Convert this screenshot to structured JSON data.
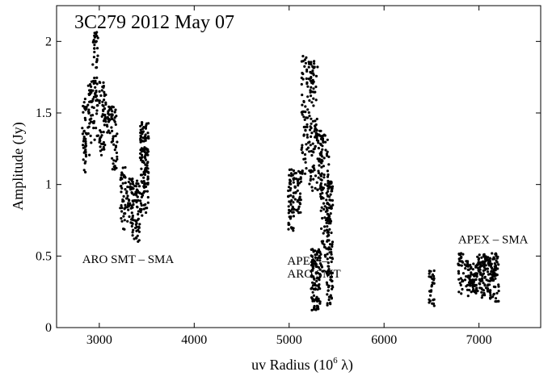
{
  "chart_data": {
    "type": "scatter",
    "title": "3C279  2012 May 07",
    "xlabel": "uv Radius (10",
    "xlabel_exponent": "6",
    "xlabel_unit": " λ)",
    "ylabel": "Amplitude (Jy)",
    "xlim": [
      2550,
      7650
    ],
    "ylim": [
      0,
      2.25
    ],
    "xticks": [
      3000,
      4000,
      5000,
      6000,
      7000
    ],
    "yticks": [
      0,
      0.5,
      1,
      1.5,
      2
    ],
    "ytick_labels": [
      "0",
      "0.5",
      "1",
      "1.5",
      "2"
    ],
    "grid": false,
    "marker_color": "#000000",
    "annotations": [
      {
        "text": "ARO SMT – SMA",
        "x": 2820,
        "y": 0.45
      },
      {
        "text": "APEX –",
        "x": 4980,
        "y": 0.44
      },
      {
        "text": "ARO SMT",
        "x": 4980,
        "y": 0.35
      },
      {
        "text": "APEX – SMA",
        "x": 6780,
        "y": 0.59
      }
    ],
    "clusters": [
      {
        "x": [
          2820,
          2870
        ],
        "y": [
          1.08,
          1.6
        ],
        "n": 40
      },
      {
        "x": [
          2880,
          2930
        ],
        "y": [
          1.2,
          1.72
        ],
        "n": 35
      },
      {
        "x": [
          2930,
          2990
        ],
        "y": [
          1.3,
          2.07
        ],
        "n": 60
      },
      {
        "x": [
          3000,
          3070
        ],
        "y": [
          1.2,
          1.72
        ],
        "n": 55
      },
      {
        "x": [
          3080,
          3140
        ],
        "y": [
          1.35,
          1.55
        ],
        "n": 30
      },
      {
        "x": [
          3130,
          3190
        ],
        "y": [
          1.1,
          1.55
        ],
        "n": 35
      },
      {
        "x": [
          3220,
          3280
        ],
        "y": [
          0.67,
          1.12
        ],
        "n": 40
      },
      {
        "x": [
          3280,
          3350
        ],
        "y": [
          0.7,
          1.05
        ],
        "n": 40
      },
      {
        "x": [
          3350,
          3430
        ],
        "y": [
          0.6,
          1.05
        ],
        "n": 60
      },
      {
        "x": [
          3430,
          3520
        ],
        "y": [
          0.78,
          1.45
        ],
        "n": 130
      },
      {
        "x": [
          4990,
          5050
        ],
        "y": [
          0.64,
          1.12
        ],
        "n": 55
      },
      {
        "x": [
          5050,
          5130
        ],
        "y": [
          0.8,
          1.1
        ],
        "n": 40
      },
      {
        "x": [
          5130,
          5190
        ],
        "y": [
          1.05,
          1.9
        ],
        "n": 55
      },
      {
        "x": [
          5190,
          5240
        ],
        "y": [
          1.0,
          1.93
        ],
        "n": 50
      },
      {
        "x": [
          5240,
          5300
        ],
        "y": [
          0.95,
          1.93
        ],
        "n": 60
      },
      {
        "x": [
          5230,
          5330
        ],
        "y": [
          0.12,
          0.55
        ],
        "n": 110
      },
      {
        "x": [
          5300,
          5360
        ],
        "y": [
          0.9,
          1.4
        ],
        "n": 45
      },
      {
        "x": [
          5330,
          5420
        ],
        "y": [
          0.25,
          1.35
        ],
        "n": 90
      },
      {
        "x": [
          5400,
          5460
        ],
        "y": [
          0.15,
          1.02
        ],
        "n": 110
      },
      {
        "x": [
          6470,
          6530
        ],
        "y": [
          0.15,
          0.4
        ],
        "n": 30
      },
      {
        "x": [
          6780,
          6840
        ],
        "y": [
          0.2,
          0.52
        ],
        "n": 30
      },
      {
        "x": [
          6850,
          6910
        ],
        "y": [
          0.22,
          0.47
        ],
        "n": 35
      },
      {
        "x": [
          6910,
          6980
        ],
        "y": [
          0.22,
          0.45
        ],
        "n": 45
      },
      {
        "x": [
          6980,
          7060
        ],
        "y": [
          0.2,
          0.52
        ],
        "n": 60
      },
      {
        "x": [
          7060,
          7120
        ],
        "y": [
          0.2,
          0.5
        ],
        "n": 50
      },
      {
        "x": [
          7120,
          7210
        ],
        "y": [
          0.18,
          0.52
        ],
        "n": 70
      }
    ]
  }
}
